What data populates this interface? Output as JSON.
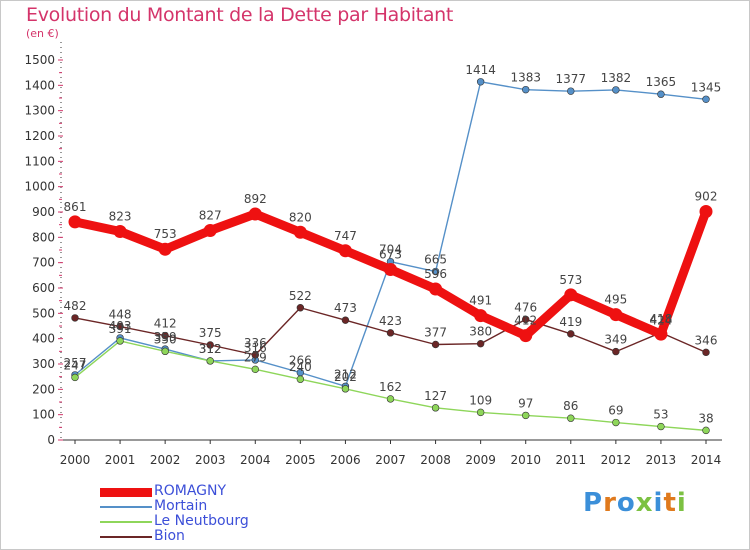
{
  "chart_data": {
    "type": "line",
    "title": "Evolution du Montant de la Dette par Habitant",
    "unit_label": "(en €)",
    "x": [
      "2000",
      "2001",
      "2002",
      "2003",
      "2004",
      "2005",
      "2006",
      "2007",
      "2008",
      "2009",
      "2010",
      "2011",
      "2012",
      "2013",
      "2014"
    ],
    "y_ticks": [
      "0",
      "100",
      "200",
      "300",
      "400",
      "500",
      "600",
      "700",
      "800",
      "900",
      "1000",
      "1100",
      "1200",
      "1300",
      "1400",
      "1500"
    ],
    "ylim": [
      0,
      1500
    ],
    "grid": false,
    "legend_position": "bottom-left",
    "series": [
      {
        "name": "ROMAGNY",
        "color": "#ee1111",
        "values": [
          861,
          823,
          753,
          827,
          892,
          820,
          747,
          673,
          596,
          491,
          412,
          573,
          495,
          418,
          902
        ]
      },
      {
        "name": "Mortain",
        "color": "#5590c8",
        "values": [
          257,
          403,
          359,
          312,
          316,
          266,
          212,
          704,
          665,
          1414,
          1383,
          1377,
          1382,
          1365,
          1345
        ]
      },
      {
        "name": "Le Neutbourg",
        "color": "#8ed65a",
        "values": [
          247,
          391,
          350,
          312,
          279,
          240,
          202,
          162,
          127,
          109,
          97,
          86,
          69,
          53,
          38
        ]
      },
      {
        "name": "Bion",
        "color": "#6b2626",
        "values": [
          482,
          448,
          412,
          375,
          336,
          522,
          473,
          423,
          377,
          380,
          476,
          419,
          349,
          424,
          346
        ]
      }
    ]
  },
  "logo": {
    "text": "Proxiti",
    "colors": [
      "#3b8fd9",
      "#e07a1d",
      "#3b8fd9",
      "#7cc142",
      "#3b8fd9",
      "#e07a1d",
      "#7cc142"
    ]
  }
}
